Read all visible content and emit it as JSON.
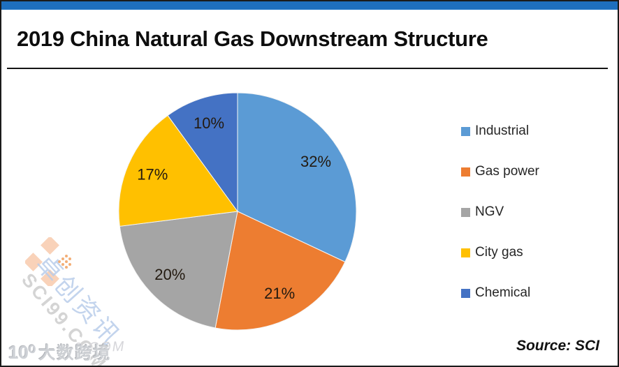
{
  "page": {
    "title": "2019 China Natural Gas Downstream Structure",
    "source_label": "Source: SCI"
  },
  "chart_data": {
    "type": "pie",
    "title": "2019 China Natural Gas Downstream Structure",
    "start_angle_deg": 0,
    "direction": "clockwise",
    "legend_position": "right",
    "series": [
      {
        "label": "Industrial",
        "value": 32,
        "color": "#5B9BD5"
      },
      {
        "label": "Gas power",
        "value": 21,
        "color": "#ED7D31"
      },
      {
        "label": "NGV",
        "value": 20,
        "color": "#A5A5A5"
      },
      {
        "label": "City gas",
        "value": 17,
        "color": "#FFC000"
      },
      {
        "label": "Chemical",
        "value": 10,
        "color": "#4472C4"
      }
    ],
    "data_labels": [
      "32%",
      "21%",
      "20%",
      "17%",
      "10%"
    ]
  },
  "watermarks": {
    "diagonal_cn": "卓创资讯",
    "diagonal_en": "SCI99.COM",
    "bottom_logo": "10⁰",
    "bottom_cn": "大数跨境",
    "bottom_faint": "9.COM"
  },
  "colors": {
    "top_bar": "#1E6FBE",
    "frame_border": "#1B1B1B",
    "pie_label_text": "#231A10"
  }
}
